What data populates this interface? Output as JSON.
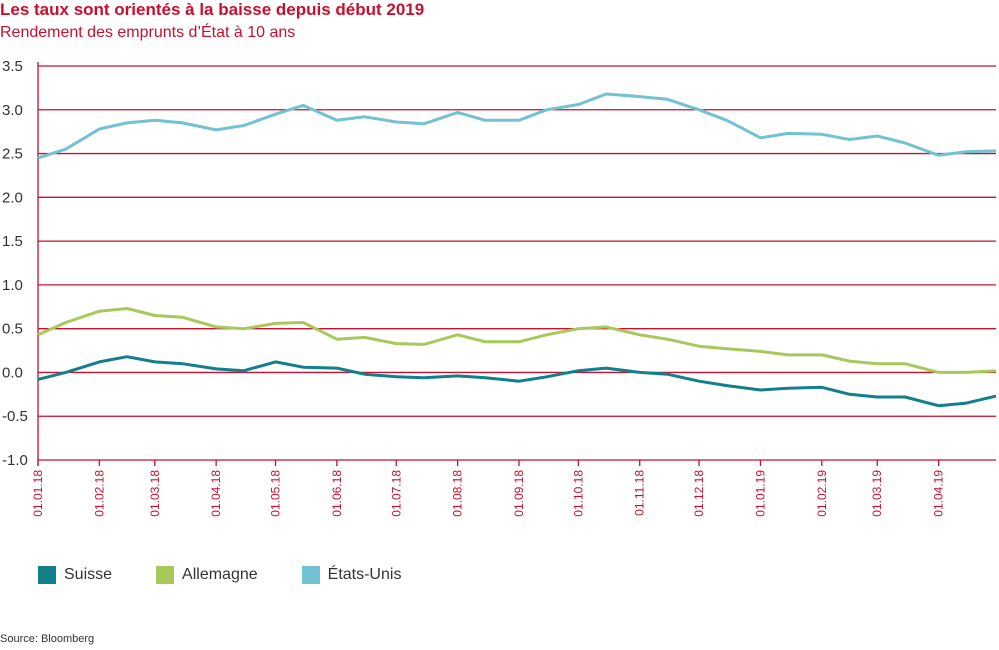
{
  "header": {
    "title": "Les taux sont orientés à la baisse depuis début 2019",
    "subtitle": "Rendement des emprunts d’État à 10 ans"
  },
  "footer": {
    "source": "Source: Bloomberg"
  },
  "colors": {
    "accent": "#c8102e",
    "suisse": "#127f8c",
    "allemagne": "#a8c95a",
    "etats_unis": "#72c2d4",
    "grid": "#c8102e"
  },
  "chart_data": {
    "type": "line",
    "title": "Les taux sont orientés à la baisse depuis début 2019",
    "subtitle": "Rendement des emprunts d’État à 10 ans",
    "xlabel": "",
    "ylabel": "",
    "ylim": [
      -1.0,
      3.5
    ],
    "yticks": [
      3.5,
      3.0,
      2.5,
      2.0,
      1.5,
      1.0,
      0.5,
      0.0,
      -0.5,
      -1.0
    ],
    "ytick_labels": [
      "3.5",
      "3.0",
      "2.5",
      "2.0",
      "1.5",
      "1.0",
      "0.5",
      "0.0",
      "-0.5",
      "-1.0"
    ],
    "xlim": [
      "2018-01-01",
      "2019-04-30"
    ],
    "x_ticks": [
      "01.01.18",
      "01.02.18",
      "01.03.18",
      "01.04.18",
      "01.05.18",
      "01.06.18",
      "01.07.18",
      "01.08.18",
      "01.09.18",
      "01.10.18",
      "01.11.18",
      "01.12.18",
      "01.01.19",
      "01.02.19",
      "01.03.19",
      "01.04.19"
    ],
    "grid": "horizontal",
    "legend_position": "bottom-left",
    "x": [
      "2018-01-01",
      "2018-01-15",
      "2018-02-01",
      "2018-02-15",
      "2018-03-01",
      "2018-03-15",
      "2018-04-01",
      "2018-04-15",
      "2018-05-01",
      "2018-05-15",
      "2018-06-01",
      "2018-06-15",
      "2018-07-01",
      "2018-07-15",
      "2018-08-01",
      "2018-08-15",
      "2018-09-01",
      "2018-09-15",
      "2018-10-01",
      "2018-10-15",
      "2018-11-01",
      "2018-11-15",
      "2018-12-01",
      "2018-12-15",
      "2019-01-01",
      "2019-01-15",
      "2019-02-01",
      "2019-02-15",
      "2019-03-01",
      "2019-03-15",
      "2019-04-01",
      "2019-04-15",
      "2019-04-30"
    ],
    "series": [
      {
        "name": "Suisse",
        "color": "#127f8c",
        "values": [
          -0.08,
          0.0,
          0.12,
          0.18,
          0.12,
          0.1,
          0.04,
          0.02,
          0.12,
          0.06,
          0.05,
          -0.02,
          -0.05,
          -0.06,
          -0.04,
          -0.06,
          -0.1,
          -0.05,
          0.02,
          0.05,
          0.0,
          -0.02,
          -0.1,
          -0.15,
          -0.2,
          -0.18,
          -0.17,
          -0.25,
          -0.28,
          -0.28,
          -0.38,
          -0.35,
          -0.27
        ]
      },
      {
        "name": "Allemagne",
        "color": "#a8c95a",
        "values": [
          0.43,
          0.57,
          0.7,
          0.73,
          0.65,
          0.63,
          0.52,
          0.5,
          0.56,
          0.57,
          0.38,
          0.4,
          0.33,
          0.32,
          0.43,
          0.35,
          0.35,
          0.43,
          0.5,
          0.52,
          0.43,
          0.38,
          0.3,
          0.27,
          0.24,
          0.2,
          0.2,
          0.13,
          0.1,
          0.1,
          0.0,
          0.0,
          0.02
        ]
      },
      {
        "name": "États-Unis",
        "color": "#72c2d4",
        "values": [
          2.45,
          2.55,
          2.78,
          2.85,
          2.88,
          2.85,
          2.77,
          2.82,
          2.95,
          3.05,
          2.88,
          2.92,
          2.86,
          2.84,
          2.97,
          2.88,
          2.88,
          3.0,
          3.06,
          3.18,
          3.15,
          3.12,
          3.0,
          2.88,
          2.68,
          2.73,
          2.72,
          2.66,
          2.7,
          2.62,
          2.48,
          2.52,
          2.53
        ]
      }
    ]
  }
}
